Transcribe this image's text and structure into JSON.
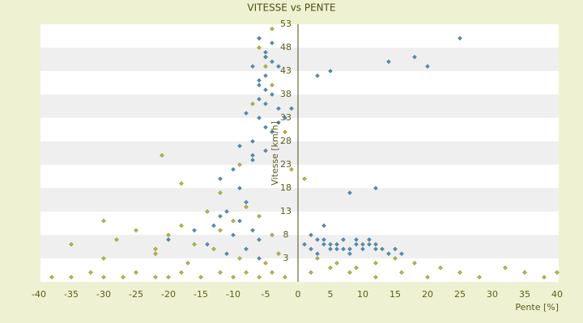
{
  "chart_data": {
    "type": "scatter",
    "title": "VITESSE vs PENTE",
    "x_label": "Pente [%]",
    "y_label": "Vitesse [km/h]",
    "xlim": [
      -40,
      40
    ],
    "ylim": [
      -2,
      53
    ],
    "xticks": [
      -40,
      -35,
      -30,
      -25,
      -20,
      -15,
      -10,
      -5,
      0,
      5,
      10,
      15,
      20,
      25,
      30,
      35,
      40
    ],
    "yticks": [
      3,
      8,
      13,
      18,
      23,
      28,
      33,
      38,
      43,
      48,
      53
    ],
    "series": [
      {
        "color": "#b9b930",
        "x": [
          -38,
          -35,
          -32,
          -30,
          -27,
          -25,
          -22,
          -20,
          -18,
          -15,
          -12,
          -10,
          -8,
          -6,
          -4,
          -2,
          2,
          5,
          8,
          12,
          16,
          20,
          25,
          28,
          32,
          35,
          38,
          40,
          -35,
          -30,
          -28,
          -25,
          -22,
          -20,
          -18,
          -16,
          -14,
          -12,
          -10,
          -8,
          -6,
          -4,
          -30,
          -22,
          -17,
          -13,
          -9,
          -5,
          -3,
          -6,
          -5,
          -4,
          -7,
          -2,
          -1,
          1,
          3,
          6,
          9,
          12,
          15,
          18,
          22,
          -21,
          -18,
          -12,
          -9,
          -4,
          -6,
          -5
        ],
        "y": [
          -1,
          -1,
          0,
          -1,
          -1,
          0,
          -1,
          -1,
          0,
          -1,
          0,
          -1,
          0,
          -1,
          0,
          -1,
          0,
          1,
          0,
          -1,
          0,
          -1,
          0,
          -1,
          1,
          0,
          -1,
          0,
          6,
          11,
          7,
          9,
          5,
          8,
          10,
          6,
          13,
          9,
          11,
          14,
          12,
          8,
          3,
          4,
          2,
          5,
          3,
          2,
          4,
          48,
          44,
          40,
          36,
          30,
          22,
          20,
          3,
          2,
          1,
          2,
          3,
          2,
          1,
          25,
          19,
          17,
          23,
          52,
          50,
          46
        ]
      },
      {
        "color": "#3d8fd9",
        "x": [
          -6,
          -5,
          -4,
          -7,
          -5,
          -6,
          -4,
          -5,
          -3,
          -6,
          -5,
          -4,
          -7,
          -6,
          -5,
          -4,
          -5,
          -8,
          -6,
          -3,
          -9,
          -7,
          -10,
          -12,
          -8,
          -11,
          -9,
          -13,
          -7,
          -10,
          -6,
          -14,
          -8,
          -12,
          -16,
          -5,
          -9,
          -11,
          -6,
          -20,
          -3,
          -7,
          1,
          2,
          3,
          4,
          5,
          6,
          7,
          8,
          9,
          10,
          11,
          12,
          13,
          14,
          15,
          3,
          5,
          7,
          9,
          11,
          2,
          4,
          6,
          8,
          10,
          12,
          16,
          4,
          8,
          12,
          5,
          14,
          18,
          25,
          3,
          20,
          -2,
          -1
        ],
        "y": [
          50,
          47,
          45,
          44,
          42,
          40,
          38,
          36,
          35,
          33,
          31,
          30,
          28,
          41,
          46,
          49,
          39,
          34,
          37,
          32,
          27,
          25,
          22,
          20,
          15,
          13,
          11,
          10,
          9,
          8,
          7,
          6,
          5,
          12,
          9,
          26,
          18,
          4,
          3,
          7,
          44,
          24,
          6,
          5,
          7,
          6,
          5,
          6,
          7,
          5,
          6,
          5,
          7,
          6,
          5,
          4,
          5,
          4,
          6,
          5,
          7,
          6,
          8,
          7,
          5,
          4,
          6,
          5,
          4,
          10,
          17,
          18,
          43,
          45,
          46,
          50,
          42,
          44,
          33,
          35
        ]
      }
    ]
  }
}
